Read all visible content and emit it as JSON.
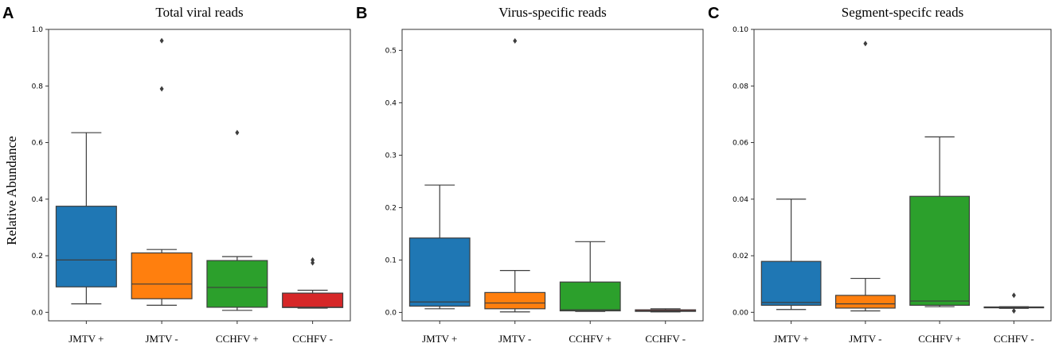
{
  "figure": {
    "ylabel": "Relative Abundance"
  },
  "chart_data": [
    {
      "type": "box",
      "letter": "A",
      "title": "Total viral reads",
      "categories": [
        "JMTV +",
        "JMTV -",
        "CCHFV +",
        "CCHFV -"
      ],
      "colors": [
        "#1f77b4",
        "#ff7f0e",
        "#2ca02c",
        "#d62728"
      ],
      "ylim": [
        -0.03,
        1.0
      ],
      "yticks": [
        0.0,
        0.2,
        0.4,
        0.6,
        0.8,
        1.0
      ],
      "ytick_labels": [
        "0.0",
        "0.2",
        "0.4",
        "0.6",
        "0.8",
        "1.0"
      ],
      "boxes": [
        {
          "whislo": 0.03,
          "q1": 0.09,
          "med": 0.185,
          "q3": 0.375,
          "whishi": 0.635,
          "fliers": []
        },
        {
          "whislo": 0.025,
          "q1": 0.048,
          "med": 0.1,
          "q3": 0.21,
          "whishi": 0.222,
          "fliers": [
            0.79,
            0.96
          ]
        },
        {
          "whislo": 0.007,
          "q1": 0.018,
          "med": 0.088,
          "q3": 0.183,
          "whishi": 0.197,
          "fliers": [
            0.635
          ]
        },
        {
          "whislo": 0.015,
          "q1": 0.017,
          "med": 0.018,
          "q3": 0.068,
          "whishi": 0.078,
          "fliers": [
            0.175,
            0.185
          ]
        }
      ]
    },
    {
      "type": "box",
      "letter": "B",
      "title": "Virus-specific reads",
      "categories": [
        "JMTV +",
        "JMTV -",
        "CCHFV +",
        "CCHFV -"
      ],
      "colors": [
        "#1f77b4",
        "#ff7f0e",
        "#2ca02c",
        "#d62728"
      ],
      "ylim": [
        -0.016,
        0.54
      ],
      "yticks": [
        0.0,
        0.1,
        0.2,
        0.3,
        0.4,
        0.5
      ],
      "ytick_labels": [
        "0.0",
        "0.1",
        "0.2",
        "0.3",
        "0.4",
        "0.5"
      ],
      "boxes": [
        {
          "whislo": 0.007,
          "q1": 0.012,
          "med": 0.02,
          "q3": 0.142,
          "whishi": 0.243,
          "fliers": []
        },
        {
          "whislo": 0.001,
          "q1": 0.007,
          "med": 0.018,
          "q3": 0.038,
          "whishi": 0.08,
          "fliers": [
            0.518
          ]
        },
        {
          "whislo": 0.002,
          "q1": 0.003,
          "med": 0.005,
          "q3": 0.058,
          "whishi": 0.135,
          "fliers": []
        },
        {
          "whislo": 0.001,
          "q1": 0.002,
          "med": 0.003,
          "q3": 0.005,
          "whishi": 0.007,
          "fliers": []
        }
      ]
    },
    {
      "type": "box",
      "letter": "C",
      "title": "Segment-specifc reads",
      "categories": [
        "JMTV +",
        "JMTV -",
        "CCHFV +",
        "CCHFV -"
      ],
      "colors": [
        "#1f77b4",
        "#ff7f0e",
        "#2ca02c",
        "#d62728"
      ],
      "ylim": [
        -0.003,
        0.1
      ],
      "yticks": [
        0.0,
        0.02,
        0.04,
        0.06,
        0.08,
        0.1
      ],
      "ytick_labels": [
        "0.00",
        "0.02",
        "0.04",
        "0.06",
        "0.08",
        "0.10"
      ],
      "boxes": [
        {
          "whislo": 0.001,
          "q1": 0.0025,
          "med": 0.0035,
          "q3": 0.018,
          "whishi": 0.04,
          "fliers": []
        },
        {
          "whislo": 0.0005,
          "q1": 0.0015,
          "med": 0.003,
          "q3": 0.006,
          "whishi": 0.012,
          "fliers": [
            0.095
          ]
        },
        {
          "whislo": 0.002,
          "q1": 0.0025,
          "med": 0.004,
          "q3": 0.041,
          "whishi": 0.062,
          "fliers": []
        },
        {
          "whislo": 0.0014,
          "q1": 0.0016,
          "med": 0.0017,
          "q3": 0.0019,
          "whishi": 0.002,
          "fliers": [
            0.0005,
            0.006
          ]
        }
      ]
    }
  ]
}
